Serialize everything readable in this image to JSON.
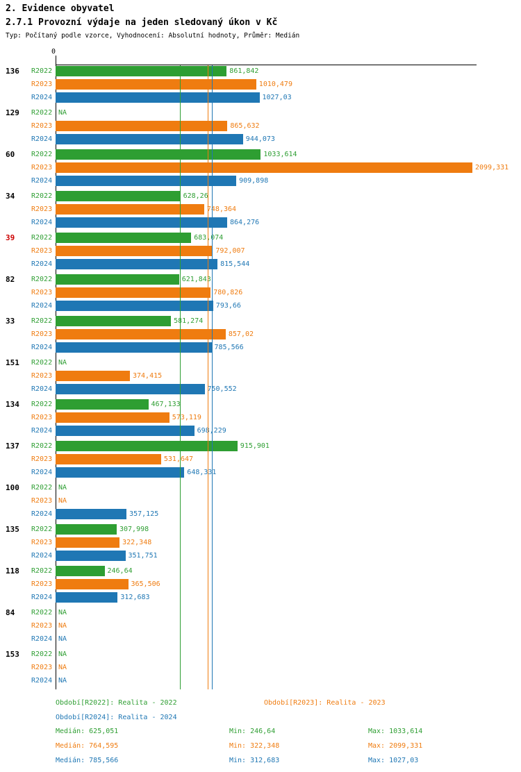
{
  "page": {
    "title": "2. Evidence obyvatel",
    "subtitle": "2.7.1 Provozní výdaje na jeden sledovaný úkon v Kč",
    "meta": "Typ: Počítaný podle vzorce, Vyhodnocení: Absolutní hodnoty, Průměr: Medián"
  },
  "axis": {
    "zero_label": "0"
  },
  "colors": {
    "r2022": "#2e9e32",
    "r2023": "#ef7c10",
    "r2024": "#1f77b4",
    "highlight_row": "#cc0000",
    "axis": "#000000"
  },
  "chart_data": {
    "type": "bar",
    "orientation": "horizontal",
    "title": "2.7.1 Provozní výdaje na jeden sledovaný úkon v Kč",
    "value_axis_min": 0,
    "na_label": "NA",
    "series": [
      "R2022",
      "R2023",
      "R2024"
    ],
    "groups": [
      {
        "id": "136",
        "highlight": false,
        "bars": [
          {
            "label": "861,842",
            "value": 861.842
          },
          {
            "label": "1010,479",
            "value": 1010.479
          },
          {
            "label": "1027,03",
            "value": 1027.03
          }
        ]
      },
      {
        "id": "129",
        "highlight": false,
        "bars": [
          {
            "label": "NA",
            "value": null
          },
          {
            "label": "865,632",
            "value": 865.632
          },
          {
            "label": "944,073",
            "value": 944.073
          }
        ]
      },
      {
        "id": "60",
        "highlight": false,
        "bars": [
          {
            "label": "1033,614",
            "value": 1033.614
          },
          {
            "label": "2099,331",
            "value": 2099.331
          },
          {
            "label": "909,898",
            "value": 909.898
          }
        ]
      },
      {
        "id": "34",
        "highlight": false,
        "bars": [
          {
            "label": "628,26",
            "value": 628.26
          },
          {
            "label": "748,364",
            "value": 748.364
          },
          {
            "label": "864,276",
            "value": 864.276
          }
        ]
      },
      {
        "id": "39",
        "highlight": true,
        "bars": [
          {
            "label": "683,074",
            "value": 683.074
          },
          {
            "label": "792,007",
            "value": 792.007
          },
          {
            "label": "815,544",
            "value": 815.544
          }
        ]
      },
      {
        "id": "82",
        "highlight": false,
        "bars": [
          {
            "label": "621,843",
            "value": 621.843
          },
          {
            "label": "780,826",
            "value": 780.826
          },
          {
            "label": "793,66",
            "value": 793.66
          }
        ]
      },
      {
        "id": "33",
        "highlight": false,
        "bars": [
          {
            "label": "581,274",
            "value": 581.274
          },
          {
            "label": "857,02",
            "value": 857.02
          },
          {
            "label": "785,566",
            "value": 785.566
          }
        ]
      },
      {
        "id": "151",
        "highlight": false,
        "bars": [
          {
            "label": "NA",
            "value": null
          },
          {
            "label": "374,415",
            "value": 374.415
          },
          {
            "label": "750,552",
            "value": 750.552
          }
        ]
      },
      {
        "id": "134",
        "highlight": false,
        "bars": [
          {
            "label": "467,133",
            "value": 467.133
          },
          {
            "label": "573,119",
            "value": 573.119
          },
          {
            "label": "698,229",
            "value": 698.229
          }
        ]
      },
      {
        "id": "137",
        "highlight": false,
        "bars": [
          {
            "label": "915,901",
            "value": 915.901
          },
          {
            "label": "531,647",
            "value": 531.647
          },
          {
            "label": "648,331",
            "value": 648.331
          }
        ]
      },
      {
        "id": "100",
        "highlight": false,
        "bars": [
          {
            "label": "NA",
            "value": null
          },
          {
            "label": "NA",
            "value": null
          },
          {
            "label": "357,125",
            "value": 357.125
          }
        ]
      },
      {
        "id": "135",
        "highlight": false,
        "bars": [
          {
            "label": "307,998",
            "value": 307.998
          },
          {
            "label": "322,348",
            "value": 322.348
          },
          {
            "label": "351,751",
            "value": 351.751
          }
        ]
      },
      {
        "id": "118",
        "highlight": false,
        "bars": [
          {
            "label": "246,64",
            "value": 246.64
          },
          {
            "label": "365,506",
            "value": 365.506
          },
          {
            "label": "312,683",
            "value": 312.683
          }
        ]
      },
      {
        "id": "84",
        "highlight": false,
        "bars": [
          {
            "label": "NA",
            "value": null
          },
          {
            "label": "NA",
            "value": null
          },
          {
            "label": "NA",
            "value": null
          }
        ]
      },
      {
        "id": "153",
        "highlight": false,
        "bars": [
          {
            "label": "NA",
            "value": null
          },
          {
            "label": "NA",
            "value": null
          },
          {
            "label": "NA",
            "value": null
          }
        ]
      }
    ],
    "median_lines": [
      {
        "series": "R2022",
        "value": 625.051
      },
      {
        "series": "R2023",
        "value": 764.595
      },
      {
        "series": "R2024",
        "value": 785.566
      }
    ]
  },
  "legend": {
    "items": [
      {
        "series": "R2022",
        "label": "Období[R2022]: Realita - 2022"
      },
      {
        "series": "R2023",
        "label": "Období[R2023]: Realita - 2023"
      },
      {
        "series": "R2024",
        "label": "Období[R2024]: Realita - 2024"
      }
    ]
  },
  "stats": {
    "rows": [
      {
        "series": "R2022",
        "median": "Medián: 625,051",
        "min": "Min: 246,64",
        "max": "Max: 1033,614"
      },
      {
        "series": "R2023",
        "median": "Medián: 764,595",
        "min": "Min: 322,348",
        "max": "Max: 2099,331"
      },
      {
        "series": "R2024",
        "median": "Medián: 785,566",
        "min": "Min: 312,683",
        "max": "Max: 1027,03"
      }
    ]
  }
}
